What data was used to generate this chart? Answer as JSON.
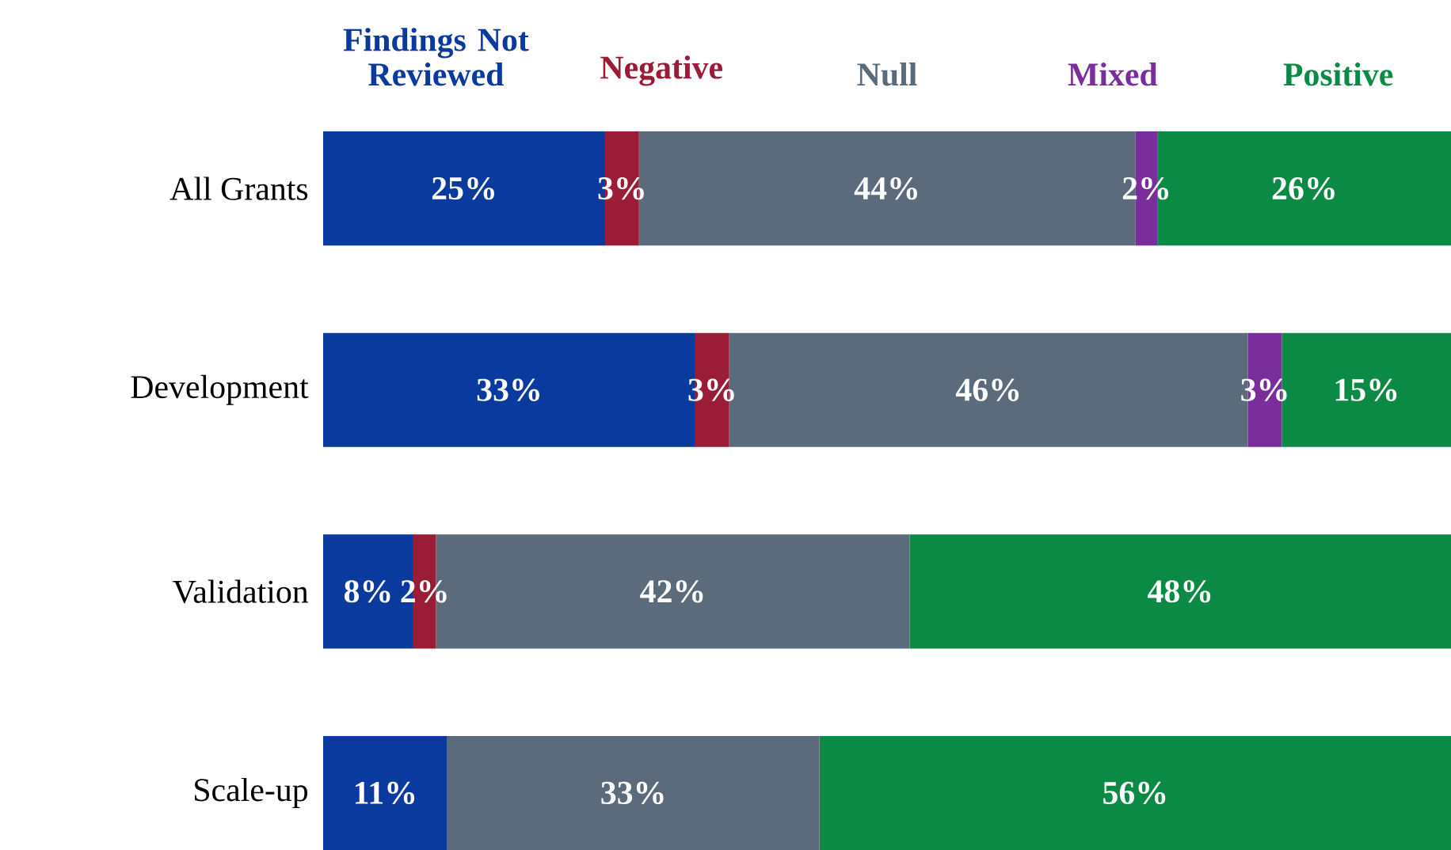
{
  "chart_data": {
    "type": "bar",
    "orientation": "horizontal",
    "stacked": true,
    "legend": "top",
    "tick_labels": "y",
    "xlim": [
      0,
      100
    ],
    "categories": [
      "All Grants",
      "Development",
      "Validation",
      "Scale-up"
    ],
    "series": [
      {
        "name": "Findings Not Reviewed",
        "color": "#0b3a9f",
        "values": [
          25,
          33,
          8,
          11
        ],
        "value_labels": [
          "25%",
          "33%",
          "8%",
          "11%"
        ]
      },
      {
        "name": "Negative",
        "color": "#9b1c36",
        "values": [
          3,
          3,
          2,
          0
        ],
        "value_labels": [
          "3%",
          "3%",
          "2%",
          null
        ]
      },
      {
        "name": "Null",
        "color": "#5b6b7b",
        "values": [
          44,
          46,
          42,
          33
        ],
        "value_labels": [
          "44%",
          "46%",
          "42%",
          "33%"
        ]
      },
      {
        "name": "Mixed",
        "color": "#7a2e9c",
        "values": [
          2,
          3,
          0,
          0
        ],
        "value_labels": [
          "2%",
          "3%",
          null,
          null
        ]
      },
      {
        "name": "Positive",
        "color": "#0b8a46",
        "values": [
          26,
          15,
          48,
          56
        ],
        "value_labels": [
          "26%",
          "15%",
          "48%",
          "56%"
        ]
      }
    ]
  }
}
